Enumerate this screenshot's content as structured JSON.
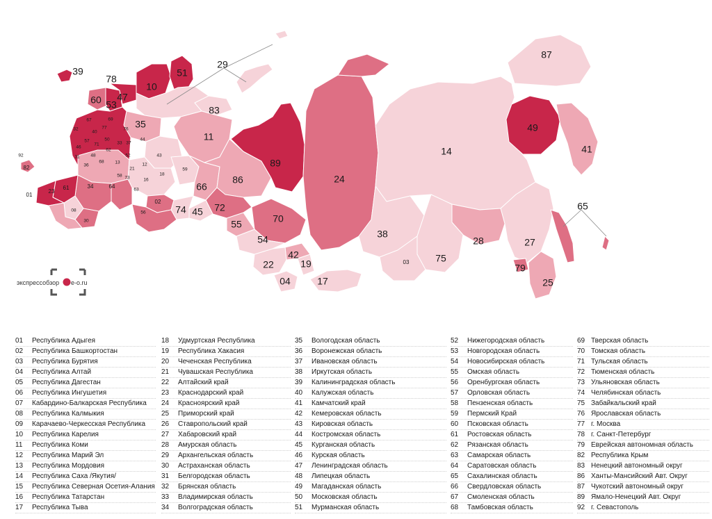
{
  "logo": {
    "text_left": "экспрессобзор",
    "text_right": "e-o.ru"
  },
  "colors": {
    "dark": "#c8264a",
    "medium": "#de6f84",
    "light": "#eea8b4",
    "pale": "#f6d3d9",
    "border": "#ffffff"
  },
  "map_labels": [
    {
      "code": "39"
    },
    {
      "code": "78"
    },
    {
      "code": "10"
    },
    {
      "code": "51"
    },
    {
      "code": "29"
    },
    {
      "code": "60"
    },
    {
      "code": "53"
    },
    {
      "code": "47"
    },
    {
      "code": "35"
    },
    {
      "code": "83"
    },
    {
      "code": "87"
    },
    {
      "code": "11"
    },
    {
      "code": "49"
    },
    {
      "code": "89"
    },
    {
      "code": "14"
    },
    {
      "code": "41"
    },
    {
      "code": "86"
    },
    {
      "code": "24"
    },
    {
      "code": "66"
    },
    {
      "code": "92"
    },
    {
      "code": "82"
    },
    {
      "code": "01"
    },
    {
      "code": "23"
    },
    {
      "code": "61"
    },
    {
      "code": "34"
    },
    {
      "code": "64"
    },
    {
      "code": "02"
    },
    {
      "code": "74"
    },
    {
      "code": "45"
    },
    {
      "code": "72"
    },
    {
      "code": "70"
    },
    {
      "code": "55"
    },
    {
      "code": "38"
    },
    {
      "code": "28"
    },
    {
      "code": "65"
    },
    {
      "code": "27"
    },
    {
      "code": "54"
    },
    {
      "code": "42"
    },
    {
      "code": "22"
    },
    {
      "code": "19"
    },
    {
      "code": "03"
    },
    {
      "code": "75"
    },
    {
      "code": "79"
    },
    {
      "code": "25"
    },
    {
      "code": "04"
    },
    {
      "code": "17"
    },
    {
      "code": "08"
    },
    {
      "code": "30"
    },
    {
      "code": "56"
    },
    {
      "code": "59"
    },
    {
      "code": "18"
    },
    {
      "code": "16"
    },
    {
      "code": "12"
    },
    {
      "code": "21"
    },
    {
      "code": "73"
    },
    {
      "code": "63"
    },
    {
      "code": "58"
    },
    {
      "code": "13"
    },
    {
      "code": "52"
    },
    {
      "code": "43"
    },
    {
      "code": "44"
    },
    {
      "code": "37"
    },
    {
      "code": "33"
    },
    {
      "code": "76"
    },
    {
      "code": "69"
    },
    {
      "code": "67"
    },
    {
      "code": "77"
    },
    {
      "code": "50"
    },
    {
      "code": "40"
    },
    {
      "code": "57"
    },
    {
      "code": "46"
    },
    {
      "code": "31"
    },
    {
      "code": "71"
    },
    {
      "code": "62"
    },
    {
      "code": "68"
    },
    {
      "code": "36"
    },
    {
      "code": "48"
    },
    {
      "code": "32"
    }
  ],
  "legend": [
    {
      "num": "01",
      "name": "Республика Адыгея"
    },
    {
      "num": "02",
      "name": "Республика Башкортостан"
    },
    {
      "num": "03",
      "name": "Республика Бурятия"
    },
    {
      "num": "04",
      "name": "Республика Алтай"
    },
    {
      "num": "05",
      "name": "Республика Дагестан"
    },
    {
      "num": "06",
      "name": "Республика Ингушетия"
    },
    {
      "num": "07",
      "name": "Кабардино-Балкарская Республика"
    },
    {
      "num": "08",
      "name": "Республика Калмыкия"
    },
    {
      "num": "09",
      "name": "Карачаево-Черкесская Республика"
    },
    {
      "num": "10",
      "name": "Республика Карелия"
    },
    {
      "num": "11",
      "name": "Республика Коми"
    },
    {
      "num": "12",
      "name": "Республика Марий Эл"
    },
    {
      "num": "13",
      "name": "Республика Мордовия"
    },
    {
      "num": "14",
      "name": "Республика Саха /Якутия/"
    },
    {
      "num": "15",
      "name": "Республика Северная Осетия-Алания"
    },
    {
      "num": "16",
      "name": "Республика Татарстан"
    },
    {
      "num": "17",
      "name": "Республика Тыва"
    },
    {
      "num": "18",
      "name": "Удмуртская Республика"
    },
    {
      "num": "19",
      "name": "Республика Хакасия"
    },
    {
      "num": "20",
      "name": "Чеченская Республика"
    },
    {
      "num": "21",
      "name": "Чувашская Республика"
    },
    {
      "num": "22",
      "name": "Алтайский край"
    },
    {
      "num": "23",
      "name": "Краснодарский край"
    },
    {
      "num": "24",
      "name": "Красноярский край"
    },
    {
      "num": "25",
      "name": "Приморский край"
    },
    {
      "num": "26",
      "name": "Ставропольский край"
    },
    {
      "num": "27",
      "name": "Хабаровский край"
    },
    {
      "num": "28",
      "name": "Амурская область"
    },
    {
      "num": "29",
      "name": "Архангельская область"
    },
    {
      "num": "30",
      "name": "Астраханская область"
    },
    {
      "num": "31",
      "name": "Белгородская область"
    },
    {
      "num": "32",
      "name": "Брянская область"
    },
    {
      "num": "33",
      "name": "Владимирская область"
    },
    {
      "num": "34",
      "name": "Волгоградская область"
    },
    {
      "num": "35",
      "name": "Вологодская область"
    },
    {
      "num": "36",
      "name": "Воронежская область"
    },
    {
      "num": "37",
      "name": "Ивановская область"
    },
    {
      "num": "38",
      "name": "Иркутская область"
    },
    {
      "num": "39",
      "name": "Калининградская область"
    },
    {
      "num": "40",
      "name": "Калужская область"
    },
    {
      "num": "41",
      "name": "Камчатский край"
    },
    {
      "num": "42",
      "name": "Кемеровская область"
    },
    {
      "num": "43",
      "name": "Кировская область"
    },
    {
      "num": "44",
      "name": "Костромская область"
    },
    {
      "num": "45",
      "name": "Курганская область"
    },
    {
      "num": "46",
      "name": "Курская область"
    },
    {
      "num": "47",
      "name": "Ленинградская область"
    },
    {
      "num": "48",
      "name": "Липецкая область"
    },
    {
      "num": "49",
      "name": "Магаданская область"
    },
    {
      "num": "50",
      "name": "Московская область"
    },
    {
      "num": "51",
      "name": "Мурманская область"
    },
    {
      "num": "52",
      "name": "Нижегородская область"
    },
    {
      "num": "53",
      "name": "Новгородская область"
    },
    {
      "num": "54",
      "name": "Новосибирская область"
    },
    {
      "num": "55",
      "name": "Омская область"
    },
    {
      "num": "56",
      "name": "Оренбургская область"
    },
    {
      "num": "57",
      "name": "Орловская область"
    },
    {
      "num": "58",
      "name": "Пензенская область"
    },
    {
      "num": "59",
      "name": "Пермский Край"
    },
    {
      "num": "60",
      "name": "Псковская область"
    },
    {
      "num": "61",
      "name": "Ростовская область"
    },
    {
      "num": "62",
      "name": "Рязанская область"
    },
    {
      "num": "63",
      "name": "Самарская область"
    },
    {
      "num": "64",
      "name": "Саратовская область"
    },
    {
      "num": "65",
      "name": "Сахалинская область"
    },
    {
      "num": "66",
      "name": "Свердловская область"
    },
    {
      "num": "67",
      "name": "Смоленская область"
    },
    {
      "num": "68",
      "name": "Тамбовская область"
    },
    {
      "num": "69",
      "name": "Тверская область"
    },
    {
      "num": "70",
      "name": "Томская область"
    },
    {
      "num": "71",
      "name": "Тульская область"
    },
    {
      "num": "72",
      "name": "Тюменская область"
    },
    {
      "num": "73",
      "name": "Ульяновская область"
    },
    {
      "num": "74",
      "name": "Челябинская область"
    },
    {
      "num": "75",
      "name": "Забайкальский край"
    },
    {
      "num": "76",
      "name": "Ярославская область"
    },
    {
      "num": "77",
      "name": "г. Москва"
    },
    {
      "num": "78",
      "name": "г. Санкт-Петербург"
    },
    {
      "num": "79",
      "name": "Еврейская автономная область"
    },
    {
      "num": "82",
      "name": "Республика Крым"
    },
    {
      "num": "83",
      "name": "Ненецкий автономный округ"
    },
    {
      "num": "86",
      "name": "Ханты-Мансийский Авт. Округ"
    },
    {
      "num": "87",
      "name": "Чукотский автономный округ"
    },
    {
      "num": "89",
      "name": "Ямало-Ненецкий Авт. Округ"
    },
    {
      "num": "92",
      "name": "г. Севастополь"
    }
  ]
}
